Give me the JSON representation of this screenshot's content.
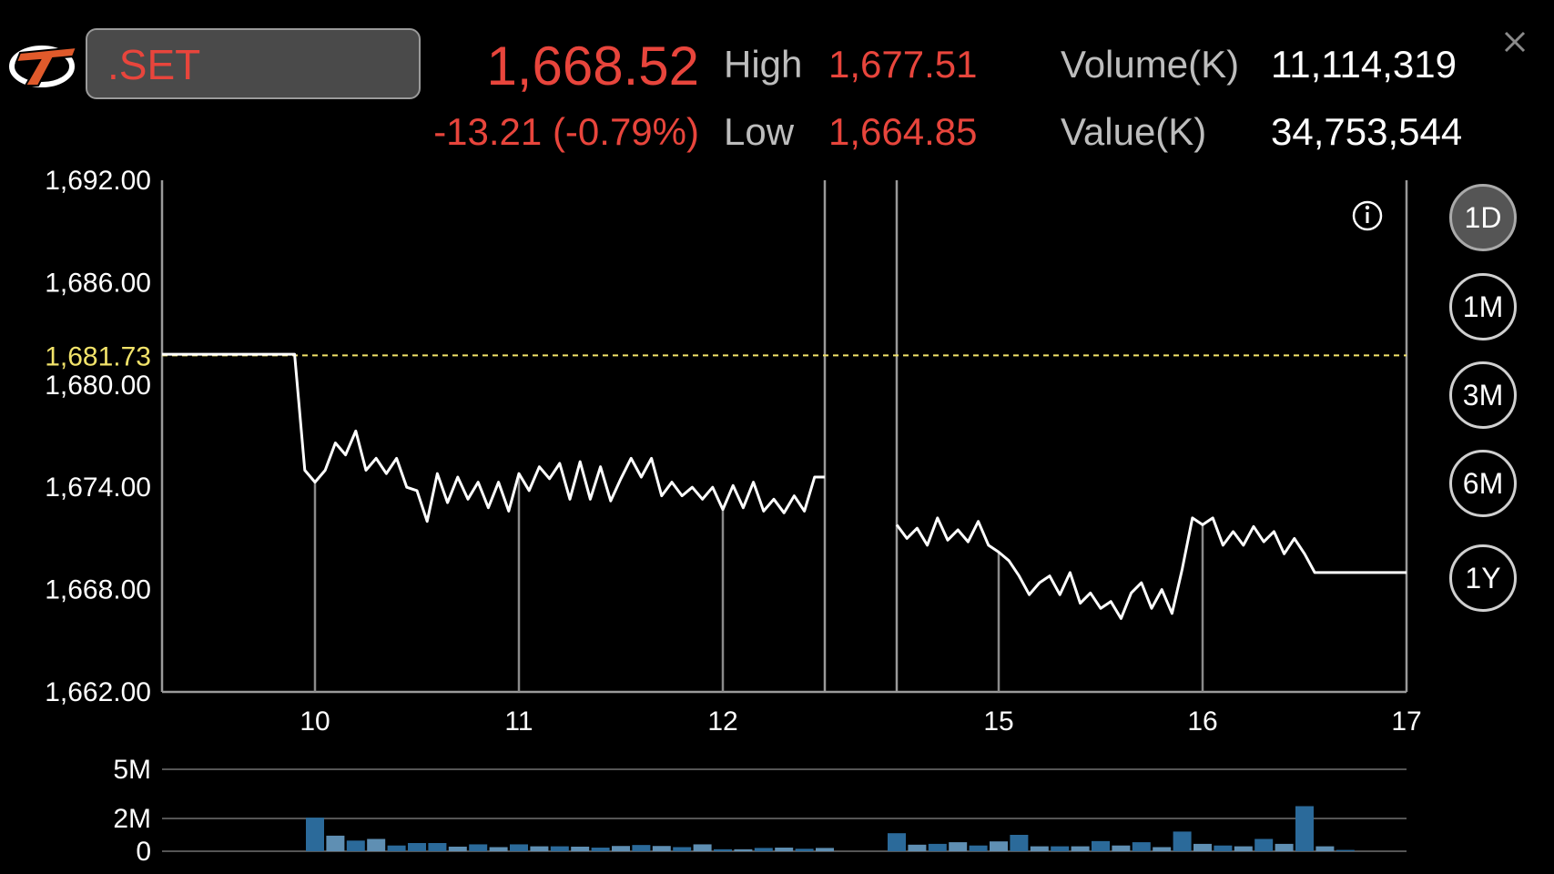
{
  "header": {
    "symbol": ".SET",
    "last_price": "1,668.52",
    "change": "-13.21 (-0.79%)",
    "high_label": "High",
    "high_value": "1,677.51",
    "low_label": "Low",
    "low_value": "1,664.85",
    "volume_label": "Volume(K)",
    "volume_value": "11,114,319",
    "value_label": "Value(K)",
    "value_value": "34,753,544"
  },
  "period_buttons": [
    {
      "label": "1D",
      "active": true
    },
    {
      "label": "1M",
      "active": false
    },
    {
      "label": "3M",
      "active": false
    },
    {
      "label": "6M",
      "active": false
    },
    {
      "label": "1Y",
      "active": false
    }
  ],
  "colors": {
    "price_line": "#ffffff",
    "reference_line": "#f2e36a",
    "down": "#e8453c",
    "volume_dark": "#2b6a9a",
    "volume_light": "#5f8fb3"
  },
  "icons": {
    "info": "info-icon",
    "close": "close-icon",
    "logo": "logo-icon"
  },
  "chart_data": [
    {
      "type": "line",
      "y_ticks": [
        "1,692.00",
        "1,686.00",
        "1,680.00",
        "1,674.00",
        "1,668.00",
        "1,662.00"
      ],
      "y_tick_values": [
        1692,
        1686,
        1680,
        1674,
        1668,
        1662
      ],
      "ylim": [
        1662,
        1692
      ],
      "x_ticks": [
        "10",
        "11",
        "12",
        "15",
        "16",
        "17"
      ],
      "x_tick_values": [
        10,
        11,
        12,
        15,
        16,
        17
      ],
      "xlim": [
        9.25,
        17
      ],
      "session_gaps": [
        [
          12.5,
          14.5
        ]
      ],
      "reference_value": 1681.73,
      "reference_label": "1,681.73",
      "grid": "vertical",
      "series": [
        {
          "x": [
            9.25,
            9.9,
            9.95,
            10.0,
            10.05,
            10.1,
            10.15,
            10.2,
            10.25,
            10.3,
            10.35,
            10.4,
            10.45,
            10.5,
            10.55,
            10.6,
            10.65,
            10.7,
            10.75,
            10.8,
            10.85,
            10.9,
            10.95,
            11.0,
            11.05,
            11.1,
            11.15,
            11.2,
            11.25,
            11.3,
            11.35,
            11.4,
            11.45,
            11.5,
            11.55,
            11.6,
            11.65,
            11.7,
            11.75,
            11.8,
            11.85,
            11.9,
            11.95,
            12.0,
            12.05,
            12.1,
            12.15,
            12.2,
            12.25,
            12.3,
            12.35,
            12.4,
            12.45,
            12.5,
            14.5,
            14.55,
            14.6,
            14.65,
            14.7,
            14.75,
            14.8,
            14.85,
            14.9,
            14.95,
            15.0,
            15.05,
            15.1,
            15.15,
            15.2,
            15.25,
            15.3,
            15.35,
            15.4,
            15.45,
            15.5,
            15.55,
            15.6,
            15.65,
            15.7,
            15.75,
            15.8,
            15.85,
            15.9,
            15.95,
            16.0,
            16.05,
            16.1,
            16.15,
            16.2,
            16.25,
            16.3,
            16.35,
            16.4,
            16.45,
            16.5,
            16.55,
            17.0
          ],
          "y": [
            1681.8,
            1681.8,
            1675.0,
            1674.3,
            1675.0,
            1676.6,
            1675.9,
            1677.3,
            1675.0,
            1675.7,
            1674.8,
            1675.7,
            1674.0,
            1673.8,
            1672.0,
            1674.8,
            1673.1,
            1674.6,
            1673.3,
            1674.3,
            1672.8,
            1674.3,
            1672.6,
            1674.8,
            1673.8,
            1675.2,
            1674.5,
            1675.4,
            1673.3,
            1675.5,
            1673.3,
            1675.2,
            1673.2,
            1674.5,
            1675.7,
            1674.6,
            1675.7,
            1673.5,
            1674.3,
            1673.5,
            1674.0,
            1673.3,
            1674.0,
            1672.7,
            1674.1,
            1672.8,
            1674.3,
            1672.6,
            1673.3,
            1672.5,
            1673.5,
            1672.6,
            1674.6,
            1674.6,
            1671.8,
            1671.0,
            1671.6,
            1670.6,
            1672.2,
            1670.9,
            1671.5,
            1670.8,
            1672.0,
            1670.6,
            1670.2,
            1669.7,
            1668.8,
            1667.7,
            1668.4,
            1668.8,
            1667.7,
            1669.0,
            1667.2,
            1667.8,
            1666.9,
            1667.3,
            1666.3,
            1667.8,
            1668.4,
            1666.9,
            1668.0,
            1666.6,
            1669.2,
            1672.2,
            1671.8,
            1672.2,
            1670.6,
            1671.4,
            1670.6,
            1671.7,
            1670.8,
            1671.4,
            1670.1,
            1671.0,
            1670.1,
            1669.0,
            1669.0
          ]
        }
      ]
    },
    {
      "type": "bar",
      "y_ticks": [
        "5M",
        "2M",
        "0"
      ],
      "y_tick_values": [
        5,
        2,
        0
      ],
      "ylim": [
        0,
        5
      ],
      "series": [
        {
          "x": [
            10.0,
            10.1,
            10.2,
            10.3,
            10.4,
            10.5,
            10.6,
            10.7,
            10.8,
            10.9,
            11.0,
            11.1,
            11.2,
            11.3,
            11.4,
            11.5,
            11.6,
            11.7,
            11.8,
            11.9,
            12.0,
            12.1,
            12.2,
            12.3,
            12.4,
            12.5,
            14.5,
            14.6,
            14.7,
            14.8,
            14.9,
            15.0,
            15.1,
            15.2,
            15.3,
            15.4,
            15.5,
            15.6,
            15.7,
            15.8,
            15.9,
            16.0,
            16.1,
            16.2,
            16.3,
            16.4,
            16.5,
            16.6,
            16.7
          ],
          "values": [
            2.05,
            0.95,
            0.65,
            0.75,
            0.35,
            0.5,
            0.5,
            0.28,
            0.42,
            0.25,
            0.42,
            0.3,
            0.3,
            0.28,
            0.22,
            0.32,
            0.38,
            0.32,
            0.25,
            0.42,
            0.12,
            0.12,
            0.2,
            0.22,
            0.15,
            0.2,
            1.1,
            0.4,
            0.45,
            0.55,
            0.35,
            0.6,
            1.0,
            0.3,
            0.3,
            0.3,
            0.62,
            0.35,
            0.55,
            0.25,
            1.2,
            0.45,
            0.35,
            0.3,
            0.75,
            0.45,
            2.75,
            0.3,
            0.08
          ],
          "shade": [
            "d",
            "l",
            "d",
            "l",
            "d",
            "d",
            "d",
            "l",
            "d",
            "l",
            "d",
            "l",
            "d",
            "l",
            "d",
            "l",
            "d",
            "l",
            "d",
            "l",
            "d",
            "l",
            "d",
            "l",
            "d",
            "l",
            "d",
            "l",
            "d",
            "l",
            "d",
            "l",
            "d",
            "l",
            "d",
            "l",
            "d",
            "l",
            "d",
            "l",
            "d",
            "l",
            "d",
            "l",
            "d",
            "l",
            "d",
            "l",
            "d"
          ]
        }
      ]
    }
  ]
}
